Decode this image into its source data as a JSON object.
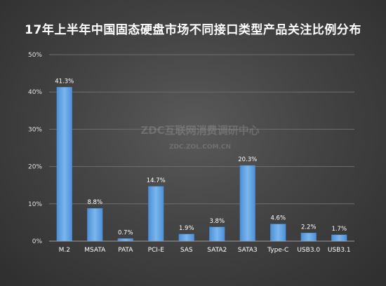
{
  "chart_data": {
    "type": "bar",
    "title": "17年上半年中国固态硬盘市场不同接口类型产品关注比例分布",
    "categories": [
      "M.2",
      "MSATA",
      "PATA",
      "PCI-E",
      "SAS",
      "SATA2",
      "SATA3",
      "Type-C",
      "USB3.0",
      "USB3.1"
    ],
    "values": [
      41.3,
      8.8,
      0.7,
      14.7,
      1.9,
      3.8,
      20.3,
      4.6,
      2.2,
      1.7
    ],
    "value_labels": [
      "41.3%",
      "8.8%",
      "0.7%",
      "14.7%",
      "1.9%",
      "3.8%",
      "20.3%",
      "4.6%",
      "2.2%",
      "1.7%"
    ],
    "ylim": [
      0,
      50
    ],
    "yticks": [
      0,
      10,
      20,
      30,
      40,
      50
    ],
    "ytick_labels": [
      "0%",
      "10%",
      "20%",
      "30%",
      "40%",
      "50%"
    ],
    "xlabel": "",
    "ylabel": "",
    "grid": true,
    "bar_color": "#6aa9e6"
  },
  "watermark": {
    "line1": "ZDC互联网消费调研中心",
    "line2": "ZDC.ZOL.COM.CN"
  }
}
